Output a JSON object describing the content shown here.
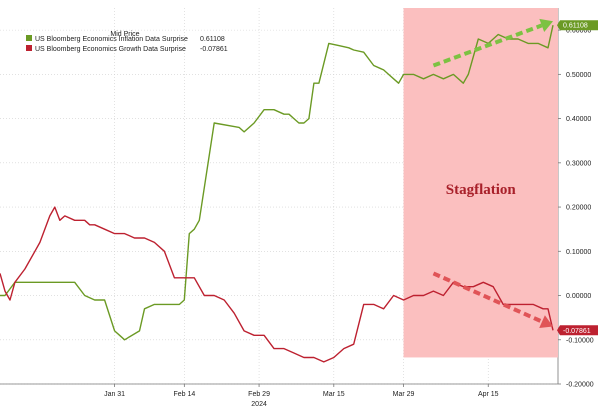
{
  "chart_data": {
    "type": "line",
    "legend_title": "Mid Price",
    "legend_position": "top-left",
    "xlabel": "",
    "ylabel": "",
    "year_label": "2024",
    "ylim": [
      -0.2,
      0.65
    ],
    "yticks": [
      "0.60000",
      "0.50000",
      "0.40000",
      "0.30000",
      "0.20000",
      "0.10000",
      "0.00000",
      "-0.10000",
      "-0.20000"
    ],
    "ytick_values": [
      0.6,
      0.5,
      0.4,
      0.3,
      0.2,
      0.1,
      0.0,
      -0.1,
      -0.2
    ],
    "xticks": [
      {
        "label": "Jan 31",
        "day": 30
      },
      {
        "label": "Feb 14",
        "day": 44
      },
      {
        "label": "Feb 29",
        "day": 59
      },
      {
        "label": "Mar 15",
        "day": 74
      },
      {
        "label": "Mar 29",
        "day": 88
      },
      {
        "label": "Apr 15",
        "day": 105
      }
    ],
    "xlim": [
      7,
      119
    ],
    "series": [
      {
        "name": "US Bloomberg Economics Inflation Data Surprise",
        "last_label": "0.61108",
        "color": "#6b9a24",
        "x": [
          7,
          8,
          10,
          12,
          16,
          18,
          19,
          20,
          22,
          24,
          26,
          28,
          30,
          31,
          32,
          35,
          36,
          38,
          41,
          42,
          43,
          44,
          45,
          46,
          47,
          50,
          55,
          56,
          58,
          60,
          62,
          64,
          65,
          66,
          67,
          68,
          69,
          70,
          71,
          73,
          75,
          77,
          78,
          80,
          82,
          84,
          85,
          86,
          87,
          88,
          90,
          92,
          94,
          96,
          98,
          100,
          101,
          103,
          105,
          107,
          109,
          111,
          113,
          115,
          117,
          118
        ],
        "y": [
          0.0,
          0.0,
          0.03,
          0.03,
          0.03,
          0.03,
          0.03,
          0.03,
          0.03,
          0.0,
          -0.01,
          -0.01,
          -0.08,
          -0.09,
          -0.1,
          -0.08,
          -0.03,
          -0.02,
          -0.02,
          -0.02,
          -0.02,
          -0.01,
          0.14,
          0.15,
          0.17,
          0.39,
          0.38,
          0.37,
          0.39,
          0.42,
          0.42,
          0.41,
          0.41,
          0.4,
          0.39,
          0.39,
          0.4,
          0.48,
          0.48,
          0.57,
          0.565,
          0.56,
          0.555,
          0.55,
          0.52,
          0.51,
          0.5,
          0.49,
          0.48,
          0.5,
          0.5,
          0.49,
          0.5,
          0.49,
          0.5,
          0.48,
          0.5,
          0.58,
          0.57,
          0.59,
          0.58,
          0.58,
          0.57,
          0.57,
          0.56,
          0.61108
        ]
      },
      {
        "name": "US Bloomberg Economics Growth Data Surprise",
        "last_label": "-0.07861",
        "color": "#bd2130",
        "x": [
          7,
          8,
          9,
          10,
          12,
          14,
          15,
          17,
          18,
          19,
          20,
          22,
          23,
          24,
          25,
          26,
          28,
          30,
          32,
          34,
          36,
          38,
          40,
          42,
          44,
          46,
          48,
          50,
          52,
          54,
          56,
          58,
          60,
          62,
          64,
          66,
          68,
          70,
          72,
          74,
          76,
          78,
          80,
          82,
          84,
          86,
          88,
          90,
          92,
          94,
          96,
          98,
          100,
          102,
          104,
          106,
          108,
          110,
          112,
          114,
          116,
          117,
          118
        ],
        "y": [
          0.05,
          0.01,
          -0.01,
          0.03,
          0.06,
          0.1,
          0.12,
          0.18,
          0.2,
          0.17,
          0.18,
          0.17,
          0.17,
          0.17,
          0.16,
          0.16,
          0.15,
          0.14,
          0.14,
          0.13,
          0.13,
          0.12,
          0.1,
          0.04,
          0.04,
          0.04,
          0.0,
          0.0,
          -0.01,
          -0.04,
          -0.08,
          -0.09,
          -0.09,
          -0.12,
          -0.12,
          -0.13,
          -0.14,
          -0.14,
          -0.15,
          -0.14,
          -0.12,
          -0.11,
          -0.02,
          -0.02,
          -0.03,
          0.0,
          -0.01,
          0.0,
          0.0,
          0.01,
          0.0,
          0.03,
          0.02,
          0.02,
          0.03,
          0.02,
          -0.02,
          -0.02,
          -0.02,
          -0.02,
          -0.03,
          -0.03,
          -0.07861
        ]
      }
    ],
    "shaded_region": {
      "x_start": 88,
      "x_end": 119,
      "y_top": 0.65,
      "y_bottom": -0.14,
      "color": "#fbbfbf"
    },
    "annotation": "Stagflation",
    "arrows": [
      {
        "color": "#7cc242",
        "from": [
          94,
          0.52
        ],
        "to": [
          118,
          0.62
        ]
      },
      {
        "color": "#e05457",
        "from": [
          94,
          0.05
        ],
        "to": [
          118,
          -0.07
        ]
      }
    ],
    "grid": true
  }
}
